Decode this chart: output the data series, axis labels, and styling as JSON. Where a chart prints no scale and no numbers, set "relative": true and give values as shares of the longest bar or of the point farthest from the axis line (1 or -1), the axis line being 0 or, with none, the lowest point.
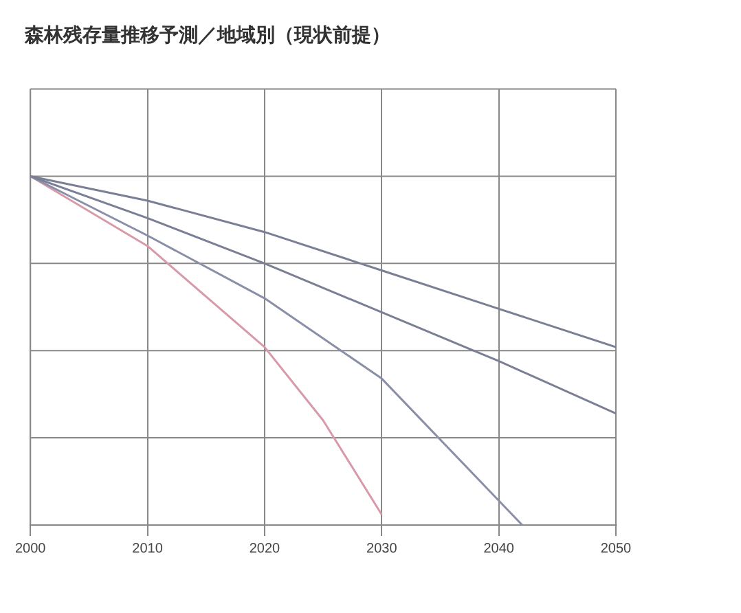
{
  "chart_data": {
    "type": "line",
    "title": "森林残存量推移予測／地域別（現状前提）",
    "relative": true,
    "xlim": [
      2000,
      2050
    ],
    "xticks": [
      2000,
      2010,
      2020,
      2030,
      2040,
      2050
    ],
    "grid": true,
    "marker": "none",
    "series": [
      {
        "color": "#7a7f95",
        "x": [
          2000,
          2010,
          2020,
          2030,
          2040,
          2050
        ],
        "values": [
          1,
          0.93,
          0.84,
          0.73,
          0.62,
          0.51
        ]
      },
      {
        "color": "#7a7f95",
        "x": [
          2000,
          2010,
          2020,
          2030,
          2040,
          2050
        ],
        "values": [
          1,
          0.88,
          0.75,
          0.61,
          0.47,
          0.32
        ]
      },
      {
        "color": "#8a8fa8",
        "x": [
          2000,
          2010,
          2020,
          2030,
          2040,
          2042
        ],
        "values": [
          1,
          0.83,
          0.65,
          0.42,
          0.07,
          0
        ]
      },
      {
        "color": "#d89aa8",
        "x": [
          2000,
          2010,
          2020,
          2025,
          2030
        ],
        "values": [
          1,
          0.8,
          0.51,
          0.3,
          0.03
        ]
      }
    ]
  }
}
